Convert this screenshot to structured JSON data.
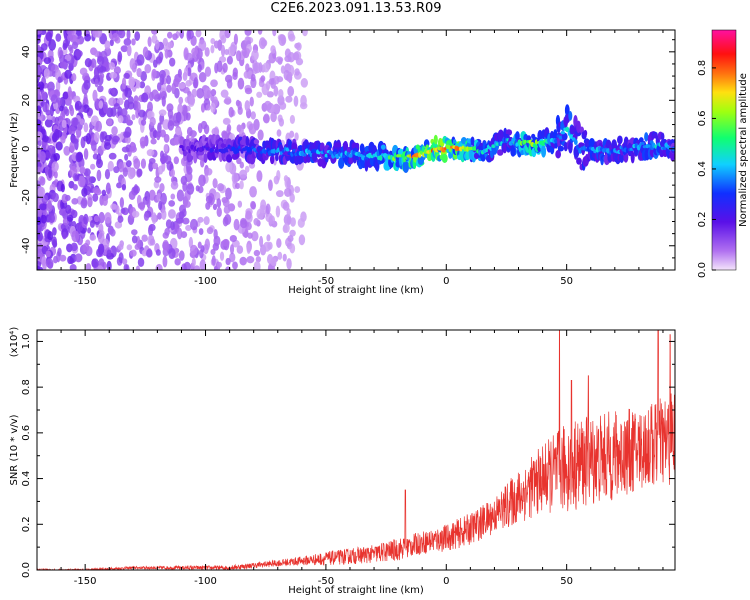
{
  "title": "C2E6.2023.091.13.53.R09",
  "colors": {
    "snr_line": "#e8332e",
    "axes": "#000000"
  },
  "chart_data": [
    {
      "type": "heatmap",
      "title": "C2E6.2023.091.13.53.R09",
      "xlabel": "Height of straight line (km)",
      "ylabel": "Frequency (Hz)",
      "xlim": [
        -170,
        95
      ],
      "ylim": [
        -50,
        49
      ],
      "xticks": [
        -150,
        -100,
        -50,
        0,
        50
      ],
      "yticks": [
        -40,
        -20,
        0,
        20,
        40
      ],
      "colorbar": {
        "label": "Normalized spectral amplitude",
        "range": [
          0,
          0.95
        ],
        "ticks": [
          0.0,
          0.2,
          0.4,
          0.6,
          0.8
        ],
        "colormap": "rainbow (violet→blue→cyan→green→yellow→orange→red→magenta)"
      },
      "ridge": {
        "description": "Narrow spectral line near 0 Hz, dominant from about -110 km to 95 km; diffuse violet noise for heights below about -80 km",
        "x": [
          -110,
          -90,
          -70,
          -50,
          -30,
          -15,
          -5,
          5,
          15,
          25,
          35,
          45,
          50,
          55,
          65,
          75,
          85,
          95
        ],
        "freq_center": [
          0,
          0,
          -1,
          -2,
          -3,
          -4,
          0,
          0,
          -1,
          3,
          2,
          3,
          8,
          0,
          -1,
          0,
          2,
          0
        ],
        "peak_amplitude": [
          0.2,
          0.3,
          0.4,
          0.45,
          0.45,
          0.8,
          0.85,
          0.8,
          0.5,
          0.45,
          0.75,
          0.45,
          0.5,
          0.4,
          0.45,
          0.4,
          0.5,
          0.4
        ]
      }
    },
    {
      "type": "line",
      "xlabel": "Height of straight line (km)",
      "ylabel": "SNR (10 * v/v)",
      "y_multiplier": "(x10⁴)",
      "xlim": [
        -170,
        95
      ],
      "ylim": [
        0,
        1.05
      ],
      "xticks": [
        -150,
        -100,
        -50,
        0,
        50
      ],
      "yticks": [
        0.0,
        0.2,
        0.4,
        0.6,
        0.8,
        1.0
      ],
      "series": [
        {
          "name": "SNR",
          "x": [
            -170,
            -150,
            -130,
            -110,
            -90,
            -80,
            -70,
            -60,
            -50,
            -40,
            -30,
            -20,
            -10,
            0,
            10,
            20,
            30,
            40,
            50,
            60,
            70,
            80,
            90,
            95
          ],
          "y": [
            0.0,
            0.0,
            0.01,
            0.01,
            0.01,
            0.02,
            0.03,
            0.04,
            0.05,
            0.06,
            0.07,
            0.09,
            0.12,
            0.14,
            0.18,
            0.24,
            0.32,
            0.4,
            0.45,
            0.48,
            0.5,
            0.53,
            0.56,
            0.55
          ],
          "noise_envelope": [
            0.005,
            0.005,
            0.006,
            0.008,
            0.01,
            0.012,
            0.015,
            0.02,
            0.03,
            0.035,
            0.04,
            0.05,
            0.05,
            0.06,
            0.07,
            0.08,
            0.12,
            0.15,
            0.2,
            0.2,
            0.2,
            0.18,
            0.2,
            0.25
          ],
          "peaks": [
            {
              "x": -17,
              "y": 0.35
            },
            {
              "x": 47,
              "y": 1.05
            },
            {
              "x": 52,
              "y": 0.83
            },
            {
              "x": 59,
              "y": 0.85
            },
            {
              "x": 88,
              "y": 1.05
            },
            {
              "x": 93,
              "y": 1.03
            }
          ]
        }
      ]
    }
  ]
}
